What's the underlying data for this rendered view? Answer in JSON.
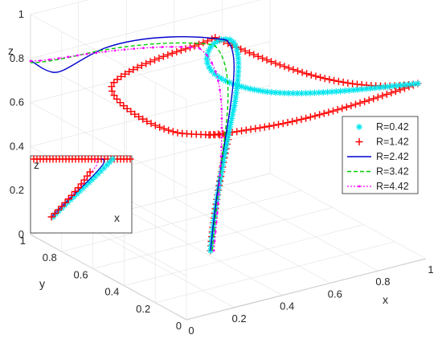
{
  "chart_data": {
    "type": "line",
    "dimensions": 3,
    "axes": {
      "x": {
        "label": "x",
        "ticks": [
          "0",
          "0.2",
          "0.4",
          "0.6",
          "0.8",
          "1"
        ],
        "range": [
          0,
          1
        ]
      },
      "y": {
        "label": "y",
        "ticks": [
          "0",
          "0.2",
          "0.4",
          "0.6",
          "0.8",
          "1"
        ],
        "range": [
          0,
          1
        ]
      },
      "z": {
        "label": "z",
        "ticks": [
          "0",
          "0.2",
          "0.4",
          "0.6",
          "0.8",
          "1"
        ],
        "range": [
          0,
          1
        ]
      }
    },
    "grid": true,
    "legend_position": "right",
    "series": [
      {
        "name": "R=0.42",
        "color": "#00e5ee",
        "marker": "asterisk",
        "line": "none"
      },
      {
        "name": "R=1.42",
        "color": "#ff0000",
        "marker": "plus",
        "line": "none"
      },
      {
        "name": "R=2.42",
        "color": "#0000cd",
        "marker": "none",
        "line": "solid"
      },
      {
        "name": "R=3.42",
        "color": "#00cc00",
        "marker": "none",
        "line": "dashed"
      },
      {
        "name": "R=4.42",
        "color": "#ff00ff",
        "marker": "dot",
        "line": "dotted"
      }
    ],
    "inset": {
      "axes_labels": [
        "z",
        "x"
      ],
      "description_visible": true
    }
  }
}
